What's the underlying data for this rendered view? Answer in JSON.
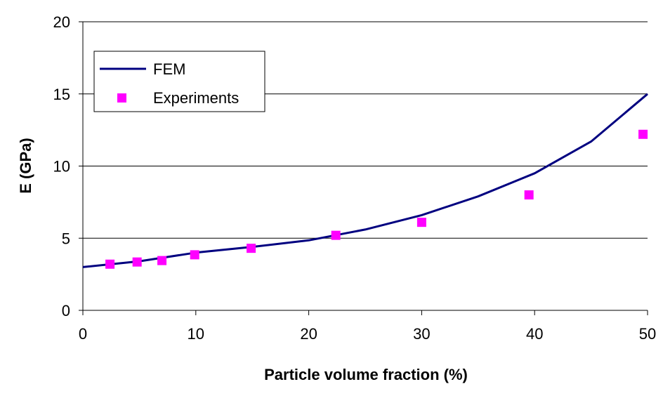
{
  "chart_data": {
    "type": "line",
    "title": "",
    "xlabel": "Particle volume fraction (%)",
    "ylabel": "E (GPa)",
    "xlim": [
      0,
      50
    ],
    "ylim": [
      0,
      20
    ],
    "xticks": [
      "0",
      "10",
      "20",
      "30",
      "40",
      "50"
    ],
    "yticks": [
      "0",
      "5",
      "10",
      "15",
      "20"
    ],
    "grid": "horizontal",
    "legend_position": "top-left",
    "series": [
      {
        "name": "FEM",
        "kind": "line",
        "color": "#000080",
        "points": [
          [
            0,
            3.0
          ],
          [
            5,
            3.4
          ],
          [
            10,
            4.0
          ],
          [
            15,
            4.4
          ],
          [
            20,
            4.85
          ],
          [
            25,
            5.6
          ],
          [
            30,
            6.6
          ],
          [
            35,
            7.9
          ],
          [
            40,
            9.5
          ],
          [
            45,
            11.7
          ],
          [
            50,
            15.0
          ]
        ]
      },
      {
        "name": "Experiments",
        "kind": "scatter",
        "color": "#ff00ff",
        "points": [
          [
            2.4,
            3.2
          ],
          [
            4.8,
            3.35
          ],
          [
            7.0,
            3.45
          ],
          [
            9.9,
            3.85
          ],
          [
            14.9,
            4.3
          ],
          [
            22.4,
            5.2
          ],
          [
            30.0,
            6.1
          ],
          [
            39.5,
            8.0
          ],
          [
            49.6,
            12.2
          ]
        ]
      }
    ]
  }
}
